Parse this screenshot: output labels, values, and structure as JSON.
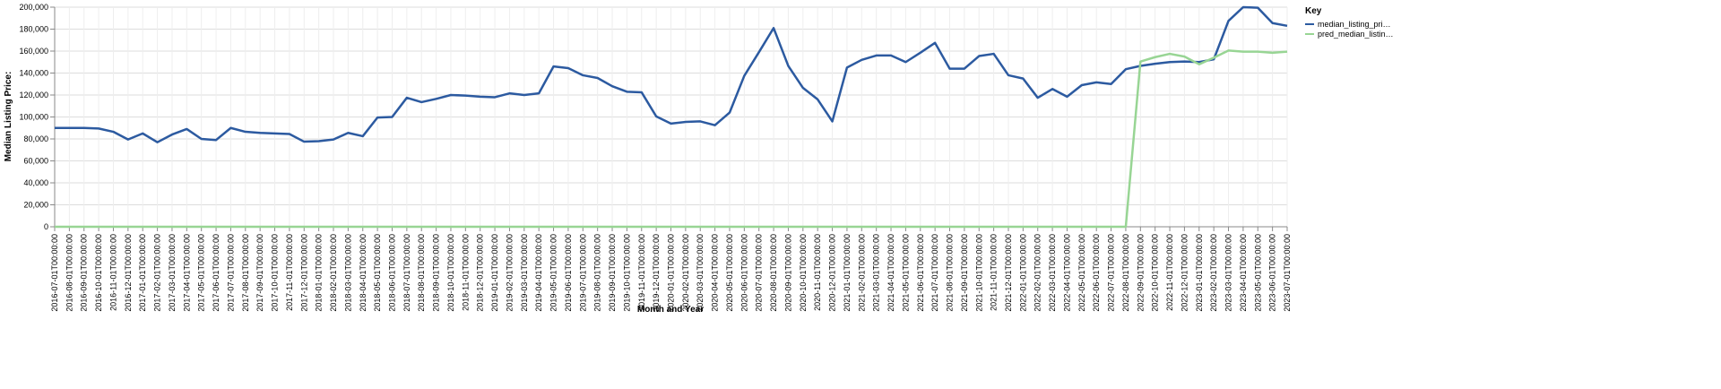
{
  "chart_data": {
    "type": "line",
    "x_label": "Month and Year",
    "y_label": "Median Listing Price:",
    "legend_title": "Key",
    "legend": "right",
    "x": [
      "2016-07-01T00:00:00",
      "2016-08-01T00:00:00",
      "2016-09-01T00:00:00",
      "2016-10-01T00:00:00",
      "2016-11-01T00:00:00",
      "2016-12-01T00:00:00",
      "2017-01-01T00:00:00",
      "2017-02-01T00:00:00",
      "2017-03-01T00:00:00",
      "2017-04-01T00:00:00",
      "2017-05-01T00:00:00",
      "2017-06-01T00:00:00",
      "2017-07-01T00:00:00",
      "2017-08-01T00:00:00",
      "2017-09-01T00:00:00",
      "2017-10-01T00:00:00",
      "2017-11-01T00:00:00",
      "2017-12-01T00:00:00",
      "2018-01-01T00:00:00",
      "2018-02-01T00:00:00",
      "2018-03-01T00:00:00",
      "2018-04-01T00:00:00",
      "2018-05-01T00:00:00",
      "2018-06-01T00:00:00",
      "2018-07-01T00:00:00",
      "2018-08-01T00:00:00",
      "2018-09-01T00:00:00",
      "2018-10-01T00:00:00",
      "2018-11-01T00:00:00",
      "2018-12-01T00:00:00",
      "2019-01-01T00:00:00",
      "2019-02-01T00:00:00",
      "2019-03-01T00:00:00",
      "2019-04-01T00:00:00",
      "2019-05-01T00:00:00",
      "2019-06-01T00:00:00",
      "2019-07-01T00:00:00",
      "2019-08-01T00:00:00",
      "2019-09-01T00:00:00",
      "2019-10-01T00:00:00",
      "2019-11-01T00:00:00",
      "2019-12-01T00:00:00",
      "2020-01-01T00:00:00",
      "2020-02-01T00:00:00",
      "2020-03-01T00:00:00",
      "2020-04-01T00:00:00",
      "2020-05-01T00:00:00",
      "2020-06-01T00:00:00",
      "2020-07-01T00:00:00",
      "2020-08-01T00:00:00",
      "2020-09-01T00:00:00",
      "2020-10-01T00:00:00",
      "2020-11-01T00:00:00",
      "2020-12-01T00:00:00",
      "2021-01-01T00:00:00",
      "2021-02-01T00:00:00",
      "2021-03-01T00:00:00",
      "2021-04-01T00:00:00",
      "2021-05-01T00:00:00",
      "2021-06-01T00:00:00",
      "2021-07-01T00:00:00",
      "2021-08-01T00:00:00",
      "2021-09-01T00:00:00",
      "2021-10-01T00:00:00",
      "2021-11-01T00:00:00",
      "2021-12-01T00:00:00",
      "2022-01-01T00:00:00",
      "2022-02-01T00:00:00",
      "2022-03-01T00:00:00",
      "2022-04-01T00:00:00",
      "2022-05-01T00:00:00",
      "2022-06-01T00:00:00",
      "2022-07-01T00:00:00",
      "2022-08-01T00:00:00",
      "2022-09-01T00:00:00",
      "2022-10-01T00:00:00",
      "2022-11-01T00:00:00",
      "2022-12-01T00:00:00",
      "2023-01-01T00:00:00",
      "2023-02-01T00:00:00",
      "2023-03-01T00:00:00",
      "2023-04-01T00:00:00",
      "2023-05-01T00:00:00",
      "2023-06-01T00:00:00",
      "2023-07-01T00:00:00"
    ],
    "series": [
      {
        "name": "median_listing_pri…",
        "color": "#2c5aa0",
        "values": [
          90000,
          90000,
          90000,
          89500,
          86500,
          79500,
          85000,
          77000,
          84000,
          89000,
          80000,
          79000,
          90000,
          86500,
          85500,
          85000,
          84500,
          77500,
          78000,
          79500,
          85500,
          82500,
          99500,
          100000,
          117500,
          113500,
          116500,
          120000,
          119500,
          118500,
          118000,
          121500,
          120000,
          121500,
          146000,
          144500,
          138000,
          135500,
          128000,
          123000,
          122500,
          100500,
          94000,
          95500,
          96000,
          92500,
          104000,
          137500,
          159000,
          181000,
          146500,
          126500,
          116000,
          96000,
          145000,
          152000,
          156000,
          156000,
          150000,
          158500,
          167500,
          144000,
          144000,
          155500,
          157500,
          138000,
          135000,
          117500,
          125500,
          118500,
          129000,
          131500,
          130000,
          143500,
          146500,
          148500,
          150000,
          150500,
          150000,
          152500,
          187500,
          200000,
          199500,
          185500,
          183000
        ]
      },
      {
        "name": "pred_median_listin…",
        "color": "#98d594",
        "values": [
          0,
          0,
          0,
          0,
          0,
          0,
          0,
          0,
          0,
          0,
          0,
          0,
          0,
          0,
          0,
          0,
          0,
          0,
          0,
          0,
          0,
          0,
          0,
          0,
          0,
          0,
          0,
          0,
          0,
          0,
          0,
          0,
          0,
          0,
          0,
          0,
          0,
          0,
          0,
          0,
          0,
          0,
          0,
          0,
          0,
          0,
          0,
          0,
          0,
          0,
          0,
          0,
          0,
          0,
          0,
          0,
          0,
          0,
          0,
          0,
          0,
          0,
          0,
          0,
          0,
          0,
          0,
          0,
          0,
          0,
          0,
          0,
          0,
          0,
          150500,
          154500,
          157500,
          155000,
          148000,
          154000,
          160500,
          159500,
          159500,
          158500,
          159500
        ]
      }
    ],
    "ylim": [
      0,
      200000
    ],
    "yticks": [
      0,
      {
        "value": 20000,
        "label": "20,000"
      },
      {
        "value": 40000,
        "label": "40,000"
      },
      {
        "value": 60000,
        "label": "60,000"
      },
      {
        "value": 80000,
        "label": "80,000"
      },
      {
        "value": 100000,
        "label": "100,000"
      },
      {
        "value": 120000,
        "label": "120,000"
      },
      {
        "value": 140000,
        "label": "140,000"
      },
      {
        "value": 160000,
        "label": "160,000"
      },
      {
        "value": 180000,
        "label": "180,000"
      },
      {
        "value": 200000,
        "label": "200,000"
      }
    ],
    "grid": true
  }
}
